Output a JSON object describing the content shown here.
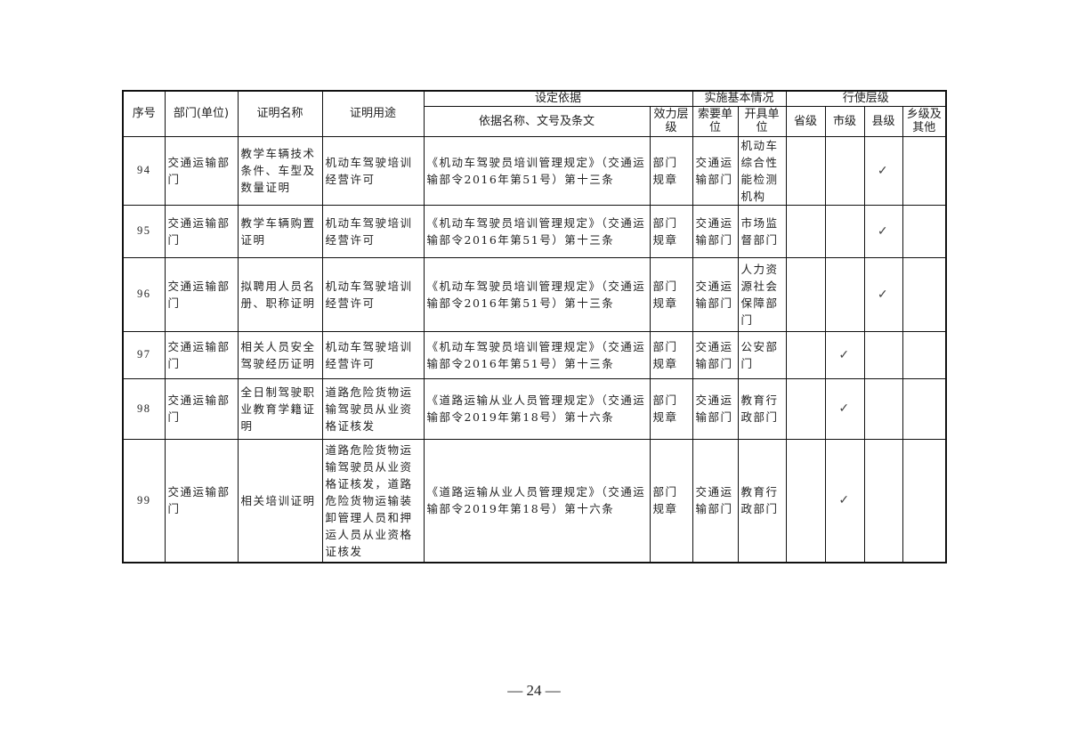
{
  "headers": {
    "seq": "序号",
    "dept": "部门(单位)",
    "name": "证明名称",
    "use": "证明用途",
    "basis": "设定依据",
    "basis_doc": "依据名称、文号及条文",
    "basis_level": "效力层级",
    "impl": "实施基本情况",
    "impl_req": "索要单位",
    "impl_issue": "开具单位",
    "exec": "行使层级",
    "prov": "省级",
    "city": "市级",
    "county": "县级",
    "town": "乡级及其他"
  },
  "check_mark": "✓",
  "rows": [
    {
      "seq": "94",
      "dept": "交通运输部门",
      "name": "教学车辆技术条件、车型及数量证明",
      "use": "机动车驾驶培训经营许可",
      "doc": "《机动车驾驶员培训管理规定》（交通运输部令2016年第51号）第十三条",
      "level": "部门规章",
      "req": "交通运输部门",
      "issue": "机动车综合性能检测机构",
      "exec": "county"
    },
    {
      "seq": "95",
      "dept": "交通运输部门",
      "name": "教学车辆购置证明",
      "use": "机动车驾驶培训经营许可",
      "doc": "《机动车驾驶员培训管理规定》（交通运输部令2016年第51号）第十三条",
      "level": "部门规章",
      "req": "交通运输部门",
      "issue": "市场监督部门",
      "exec": "county"
    },
    {
      "seq": "96",
      "dept": "交通运输部门",
      "name": "拟聘用人员名册、职称证明",
      "use": "机动车驾驶培训经营许可",
      "doc": "《机动车驾驶员培训管理规定》（交通运输部令2016年第51号）第十三条",
      "level": "部门规章",
      "req": "交通运输部门",
      "issue": "人力资源社会保障部门",
      "exec": "county"
    },
    {
      "seq": "97",
      "dept": "交通运输部门",
      "name": "相关人员安全驾驶经历证明",
      "use": "机动车驾驶培训经营许可",
      "doc": "《机动车驾驶员培训管理规定》（交通运输部令2016年第51号）第十三条",
      "level": "部门规章",
      "req": "交通运输部门",
      "issue": "公安部门",
      "exec": "city"
    },
    {
      "seq": "98",
      "dept": "交通运输部门",
      "name": "全日制驾驶职业教育学籍证明",
      "use": "道路危险货物运输驾驶员从业资格证核发",
      "doc": "《道路运输从业人员管理规定》（交通运输部令2019年第18号）第十六条",
      "level": "部门规章",
      "req": "交通运输部门",
      "issue": "教育行政部门",
      "exec": "city"
    },
    {
      "seq": "99",
      "dept": "交通运输部门",
      "name": "相关培训证明",
      "use": "道路危险货物运输驾驶员从业资格证核发，道路危险货物运输装卸管理人员和押运人员从业资格证核发",
      "doc": "《道路运输从业人员管理规定》（交通运输部令2019年第18号）第十六条",
      "level": "部门规章",
      "req": "交通运输部门",
      "issue": "教育行政部门",
      "exec": "city"
    }
  ],
  "page_number": "— 24 —"
}
